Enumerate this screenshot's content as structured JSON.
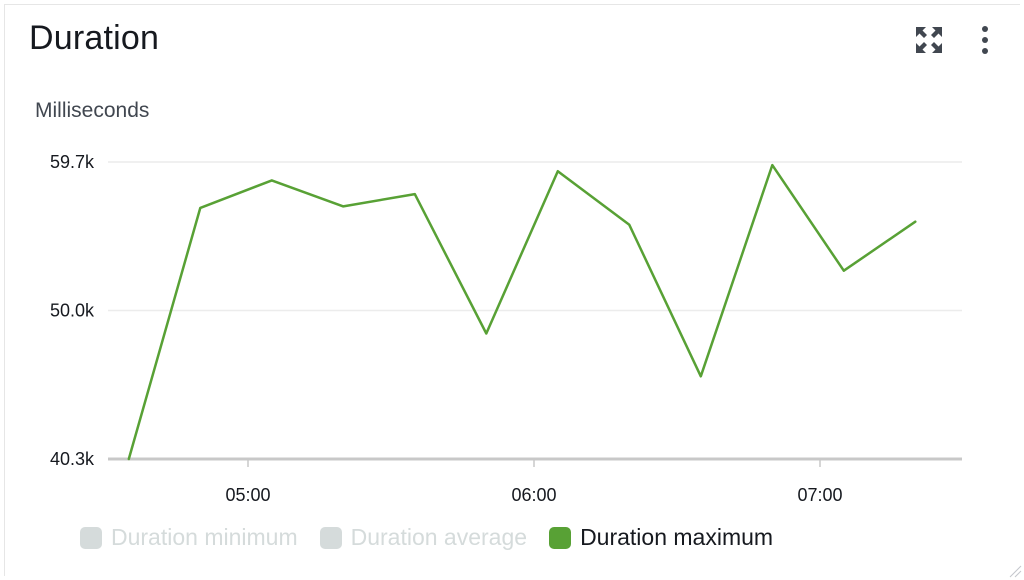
{
  "widget": {
    "title": "Duration"
  },
  "icons": {
    "expand": "expand-icon",
    "more": "more-vertical-icon",
    "resize": "resize-handle-icon"
  },
  "chart_data": {
    "type": "line",
    "title": "Duration",
    "ylabel": "Milliseconds",
    "xlabel": "",
    "y_ticks": [
      "59.7k",
      "50.0k",
      "40.3k"
    ],
    "y_tick_values": [
      59700,
      50000,
      40300
    ],
    "ylim": [
      40300,
      59700
    ],
    "x_ticks": [
      "05:00",
      "06:00",
      "07:00"
    ],
    "x_tick_minutes": [
      300,
      360,
      420
    ],
    "xlim": [
      "04:40",
      "07:50"
    ],
    "grid": true,
    "legend_position": "bottom-left",
    "series": [
      {
        "name": "Duration maximum",
        "color": "#58a135",
        "visible": true,
        "x": [
          "04:35",
          "04:50",
          "05:05",
          "05:20",
          "05:35",
          "05:50",
          "06:05",
          "06:20",
          "06:35",
          "06:50",
          "07:05",
          "07:20"
        ],
        "values": [
          40300,
          56700,
          58500,
          56800,
          57600,
          48500,
          59100,
          55600,
          45700,
          59500,
          52600,
          55800
        ]
      },
      {
        "name": "Duration minimum",
        "color": "#d5dbdb",
        "visible": false,
        "x": [],
        "values": []
      },
      {
        "name": "Duration average",
        "color": "#d5dbdb",
        "visible": false,
        "x": [],
        "values": []
      }
    ]
  },
  "legend": [
    {
      "label": "Duration minimum",
      "active": false
    },
    {
      "label": "Duration average",
      "active": false
    },
    {
      "label": "Duration maximum",
      "active": true
    }
  ]
}
